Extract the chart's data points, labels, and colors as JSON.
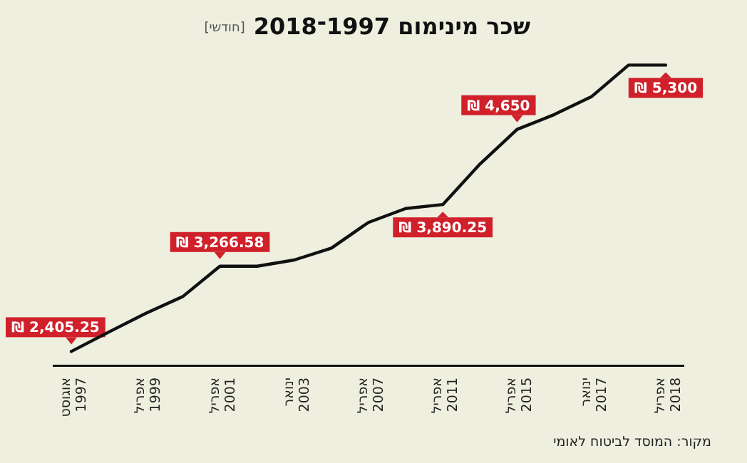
{
  "chart_data": {
    "type": "line",
    "title": "שכר מינימום 1997־2018",
    "subtitle": "[חודשי]",
    "annotations": [
      "מקור: המוסד לביטוח לאומי"
    ],
    "categories": [
      "אוגוסט\n1997",
      null,
      "אפריל\n1999",
      null,
      "אפריל\n2001",
      null,
      "ינואר\n2003",
      null,
      "אפריל\n2007",
      null,
      "אפריל\n2011",
      null,
      "אפריל\n2015",
      null,
      "ינואר\n2017",
      null,
      "אפריל\n2018"
    ],
    "series": [
      {
        "color": "#111111",
        "values": [
          2405.25,
          2600,
          2790,
          2960,
          3266.58,
          3266.58,
          3330,
          3450,
          3710,
          3850,
          3890.25,
          4300,
          4650,
          4800,
          4980,
          5300,
          5300
        ],
        "value_labels": [
          "₪ 2,405.25",
          null,
          null,
          null,
          "₪ 3,266.58",
          null,
          null,
          null,
          null,
          null,
          "₪ 3,890.25",
          null,
          "₪ 4,650",
          null,
          null,
          null,
          "₪ 5,300"
        ]
      }
    ]
  }
}
